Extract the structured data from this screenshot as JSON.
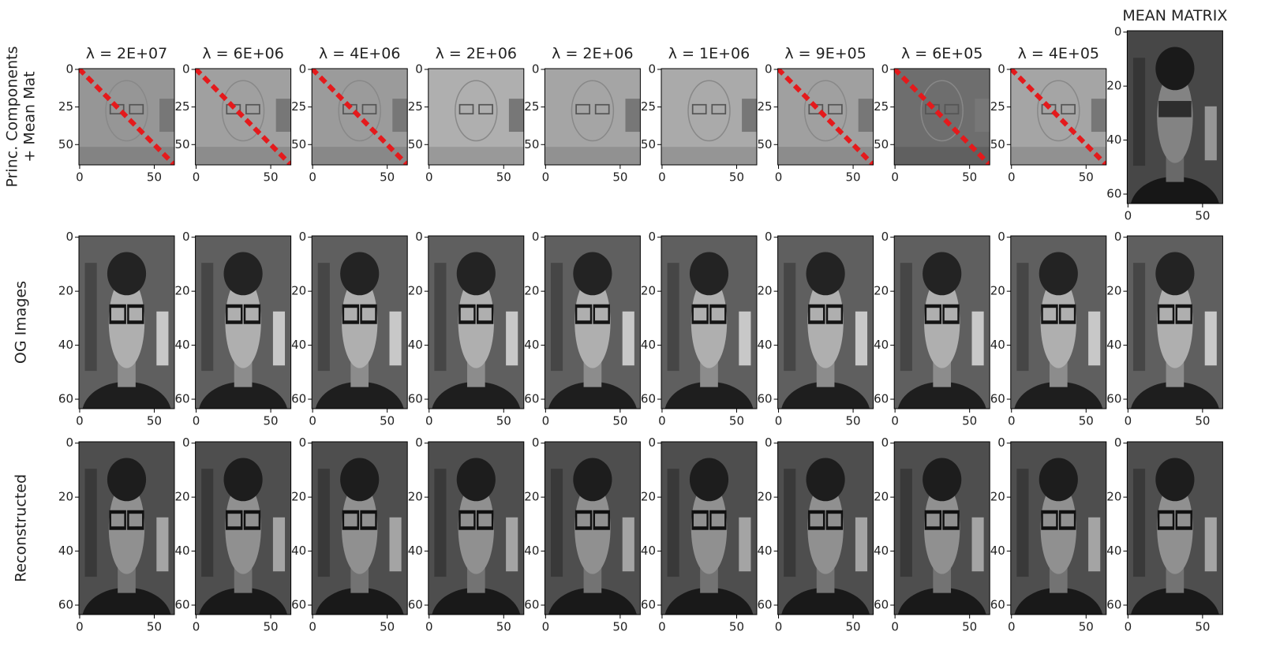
{
  "figure": {
    "rows": [
      {
        "label_lines": [
          "Princ. Components",
          "+ Mean Mat"
        ],
        "panel_titles": [
          "λ = 2E+07",
          "λ = 6E+06",
          "λ = 4E+06",
          "λ = 2E+06",
          "λ = 2E+06",
          "λ = 1E+06",
          "λ = 9E+05",
          "λ = 6E+05",
          "λ = 4E+05"
        ],
        "xlim": [
          -0.5,
          63.5
        ],
        "ylim": [
          -0.5,
          63.5
        ],
        "xticks": [
          0,
          50
        ],
        "yticks": [
          0,
          25,
          50
        ]
      },
      {
        "label_lines": [
          "OG Images"
        ],
        "panel_count": 10,
        "xlim": [
          -0.5,
          63.5
        ],
        "ylim": [
          -0.5,
          63.5
        ],
        "xticks": [
          0,
          50
        ],
        "yticks": [
          0,
          20,
          40,
          60
        ]
      },
      {
        "label_lines": [
          "Reconstructed"
        ],
        "panel_count": 10,
        "xlim": [
          -0.5,
          63.5
        ],
        "ylim": [
          -0.5,
          63.5
        ],
        "xticks": [
          0,
          50
        ],
        "yticks": [
          0,
          20,
          40,
          60
        ]
      }
    ],
    "mean_panel": {
      "title": "MEAN MATRIX",
      "xlim": [
        -0.5,
        63.5
      ],
      "ylim": [
        -0.5,
        63.5
      ],
      "xticks": [
        0,
        50
      ],
      "yticks": [
        0,
        20,
        40,
        60
      ]
    }
  }
}
